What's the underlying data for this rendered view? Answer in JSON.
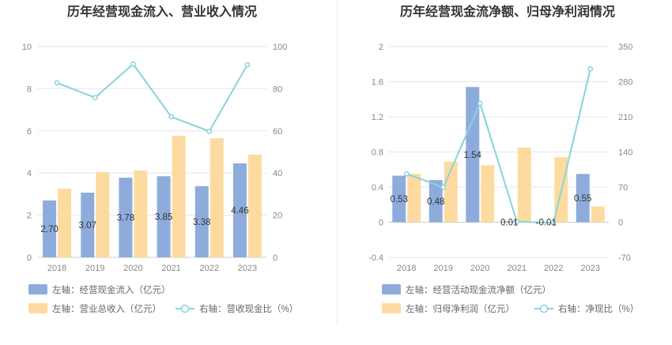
{
  "left_panel": {
    "title": "历年经营现金流入、营业收入情况",
    "legend": [
      {
        "label": "左轴：经营现金流入（亿元）",
        "color": "#8eacdb",
        "kind": "bar"
      },
      {
        "label": "左轴：营业总收入（亿元）",
        "color": "#fddba0",
        "kind": "bar"
      },
      {
        "label": "右轴：营收现金比（%）",
        "color": "#88d3dc",
        "kind": "line"
      }
    ]
  },
  "right_panel": {
    "title": "历年经营现金流净额、归母净利润情况",
    "legend": [
      {
        "label": "左轴：经营活动现金流净额（亿元）",
        "color": "#8eacdb",
        "kind": "bar"
      },
      {
        "label": "左轴：归母净利润（亿元）",
        "color": "#fddba0",
        "kind": "bar"
      },
      {
        "label": "右轴：净现比（%）",
        "color": "#88d3dc",
        "kind": "line"
      }
    ]
  },
  "chart_data": [
    {
      "type": "bar",
      "title": "历年经营现金流入、营业收入情况",
      "categories": [
        "2018",
        "2019",
        "2020",
        "2021",
        "2022",
        "2023"
      ],
      "y_left": {
        "min": 0,
        "max": 10,
        "ticks": [
          "0",
          "2",
          "4",
          "6",
          "8",
          "10"
        ]
      },
      "y_right": {
        "min": 0,
        "max": 100,
        "ticks": [
          "0",
          "20",
          "40",
          "60",
          "80",
          "100"
        ]
      },
      "series": [
        {
          "name": "左轴：经营现金流入（亿元）",
          "axis": "left",
          "kind": "bar",
          "color": "#8eacdb",
          "values": [
            2.7,
            3.07,
            3.78,
            3.85,
            3.38,
            4.46
          ],
          "labels": [
            "2.70",
            "3.07",
            "3.78",
            "3.85",
            "3.38",
            "4.46"
          ]
        },
        {
          "name": "左轴：营业总收入（亿元）",
          "axis": "left",
          "kind": "bar",
          "color": "#fddba0",
          "values": [
            3.26,
            4.05,
            4.12,
            5.77,
            5.65,
            4.88
          ]
        },
        {
          "name": "右轴：营收现金比（%）",
          "axis": "right",
          "kind": "line",
          "color": "#88d3dc",
          "values": [
            82.8,
            75.8,
            91.7,
            66.7,
            59.8,
            91.4
          ]
        }
      ],
      "grid": true
    },
    {
      "type": "bar",
      "title": "历年经营现金流净额、归母净利润情况",
      "categories": [
        "2018",
        "2019",
        "2020",
        "2021",
        "2022",
        "2023"
      ],
      "y_left": {
        "min": -0.4,
        "max": 2,
        "ticks": [
          "-0.4",
          "0",
          "0.4",
          "0.8",
          "1.2",
          "1.6",
          "2"
        ]
      },
      "y_right": {
        "min": -70,
        "max": 350,
        "ticks": [
          "-70",
          "0",
          "70",
          "140",
          "210",
          "280",
          "350"
        ]
      },
      "series": [
        {
          "name": "左轴：经营活动现金流净额（亿元）",
          "axis": "left",
          "kind": "bar",
          "color": "#8eacdb",
          "values": [
            0.53,
            0.48,
            1.54,
            0.01,
            -0.01,
            0.55
          ],
          "labels": [
            "0.53",
            "0.48",
            "1.54",
            "0.01",
            "-0.01",
            "0.55"
          ]
        },
        {
          "name": "左轴：归母净利润（亿元）",
          "axis": "left",
          "kind": "bar",
          "color": "#fddba0",
          "values": [
            0.55,
            0.69,
            0.65,
            0.85,
            0.74,
            0.18
          ]
        },
        {
          "name": "右轴：净现比（%）",
          "axis": "right",
          "kind": "line",
          "color": "#88d3dc",
          "values": [
            96.4,
            69.6,
            236.9,
            1.2,
            -1.4,
            305.6
          ]
        }
      ],
      "grid": true
    }
  ]
}
